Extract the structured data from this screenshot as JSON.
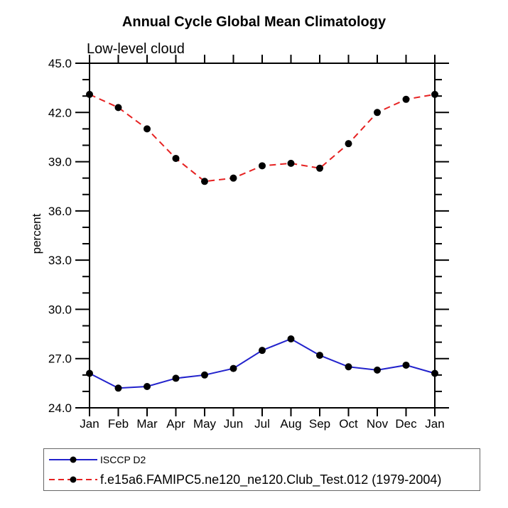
{
  "chart_data": {
    "type": "line",
    "title": "Annual Cycle Global Mean Climatology",
    "subtitle": "Low-level cloud",
    "ylabel": "percent",
    "xlabel": "",
    "categories": [
      "Jan",
      "Feb",
      "Mar",
      "Apr",
      "May",
      "Jun",
      "Jul",
      "Aug",
      "Sep",
      "Oct",
      "Nov",
      "Dec",
      "Jan"
    ],
    "ylim": [
      24.0,
      45.0
    ],
    "ytick_major": 3.0,
    "ytick_minor": 1.0,
    "grid": false,
    "legend_position": "bottom-left",
    "frame_color": "#000000",
    "marker": {
      "shape": "circle",
      "color": "#000000",
      "radius": 5
    },
    "series": [
      {
        "name": "ISCCP D2",
        "color": "#2222cc",
        "line_style": "solid",
        "values": [
          26.1,
          25.2,
          25.3,
          25.8,
          26.0,
          26.4,
          27.5,
          28.2,
          27.2,
          26.5,
          26.3,
          26.6,
          26.1
        ]
      },
      {
        "name": "f.e15a6.FAMIPC5.ne120_ne120.Club_Test.012 (1979-2004)",
        "color": "#e62222",
        "line_style": "dashed",
        "values": [
          43.1,
          42.3,
          41.0,
          39.2,
          37.8,
          38.0,
          38.75,
          38.9,
          38.6,
          40.1,
          42.0,
          42.8,
          43.1
        ]
      }
    ]
  }
}
